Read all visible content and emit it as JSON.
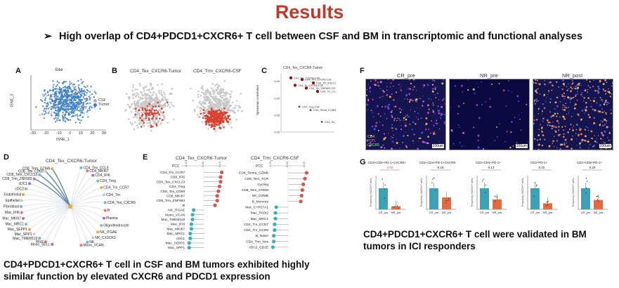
{
  "header": {
    "title": "Results",
    "bullet_arrow": "➢",
    "bullet_text": "High overlap of CD4+PDCD1+CXCR6+ T cell between CSF and BM in transcriptomic and functional analyses"
  },
  "panelA": {
    "label": "A",
    "title": "Site",
    "xlabel": "tSNE_1",
    "ylabel": "tSNE_2",
    "xticks": [
      "-30",
      "-20",
      "-10",
      "0",
      "10",
      "20",
      "30"
    ],
    "legend": [
      "CSF",
      "Tumor"
    ],
    "colors": {
      "CSF": "#b0b0b0",
      "Tumor": "#3a7fc4"
    }
  },
  "panelB": {
    "label": "B",
    "titles": [
      "CD4_Tex_CXCR6-Tumor",
      "CD4_Trm_CXCR6-CSF"
    ],
    "colors": {
      "background": "#c8c8c8",
      "highlight": "#d94030"
    }
  },
  "panelC": {
    "label": "C",
    "title": "CD4_Tex_CXCR6-Tumor",
    "ylabel": "Spearman correlation",
    "yticks": [
      "0.65",
      "0.60",
      "0.55",
      "0.50"
    ],
    "chart_data": {
      "type": "scatter",
      "ylabel": "Spearman correlation",
      "points": [
        {
          "label": "CD4_Tex_CXCR6-CSF",
          "y": 0.66
        },
        {
          "label": "CD4_Trm_CXCR6-CSF",
          "y": 0.655
        },
        {
          "label": "CD4_Tfh_IFI6-CSF",
          "y": 0.645
        },
        {
          "label": "CD4_Th_CXCR6-CSF",
          "y": 0.638
        },
        {
          "label": "CD4_Tfh_ZNF683-CSF",
          "y": 0.63
        },
        {
          "label": "CD4_Tm_CCR7-CSF",
          "y": 0.62
        },
        {
          "label": "CD4_Treg-CSF",
          "y": 0.575
        },
        {
          "label": "CD4_Temra_KLRB1-CSF",
          "y": 0.565
        },
        {
          "label": "CD4_Tm_FOS-CSF",
          "y": 0.53
        }
      ]
    }
  },
  "panelD": {
    "label": "D",
    "title": "CD4_Tex_CXCR6-Tumor",
    "left_nodes": [
      "CD8_Tem_GZMA",
      "CD8_Tex_CD69",
      "CD8_Tem_CXCL13",
      "CD8_Trm_ZNF683",
      "cDC1",
      "cDC2",
      "Endothelial",
      "Epithelial",
      "Fibroblast",
      "Mac_IFI6",
      "Mac_MKI67",
      "Mac_MRC1",
      "Mac_SEPP1",
      "Mac_SPP1",
      "Mac_TMEM119",
      "Mast",
      "Mono_SELL"
    ],
    "right_nodes": [
      "CD4_Tex_CCL5",
      "CD4_MKI67",
      "CD4_IFI6",
      "CD4_Treg",
      "CD4_Tm_CCR7",
      "CD4_Tm",
      "CD4_Tex_CXCR6",
      "B",
      "Plasma",
      "Oligodendrocyte",
      "NK_ITGAE",
      "NK_CX3CR1",
      "NK",
      "Mono_VCAN"
    ]
  },
  "panelE": {
    "label": "E",
    "left": {
      "title": "CD4_Tex_CXCR6-Tumor",
      "axis": "PCC",
      "ticks": [
        "-0.15",
        "0.00",
        "0.15"
      ],
      "chart_data": {
        "type": "lollipop",
        "xlabel": "PCC",
        "categories": [
          "CD4_Tm_CCR7",
          "CD8_IFI6",
          "CD8_Tex_CXCL13",
          "CD4_Treg",
          "CD8_Tex_CD69",
          "CD8_MKI67",
          "CD8_Trm_ZNF683",
          "B",
          "NK_ITGAE",
          "Mono_VCAN",
          "Mac_TMEM119",
          "Mac_IFI6",
          "Mac_MKI67",
          "Mac_MRC1",
          "cDC1",
          "Mac_SEPP1",
          "Mac_SPP1"
        ],
        "values": [
          0.16,
          0.15,
          0.15,
          0.14,
          0.13,
          0.12,
          0.12,
          0.1,
          -0.09,
          -0.1,
          -0.1,
          -0.11,
          -0.11,
          -0.12,
          -0.12,
          -0.13,
          -0.13
        ]
      }
    },
    "right": {
      "title": "CD4_Trm_CXCR6-CSF",
      "axis": "PCC",
      "ticks": [
        "-0.20",
        "0.00",
        "0.20"
      ],
      "chart_data": {
        "type": "lollipop",
        "xlabel": "PCC",
        "categories": [
          "CD8_Temra_GZMB",
          "CD8_Tem_TCR",
          "Cycling",
          "CD8_Tem_CREM",
          "NK_GZMB",
          "B_Memory",
          "Mac_CYP27A1",
          "Mac_PADI2",
          "Mac_MRC1",
          "CD4_Tm_CCR7",
          "CD4_Tm_CCR6",
          "B_Naive",
          "CD4_Trm_Nos",
          "cDC2_CD1E"
        ],
        "values": [
          0.22,
          0.2,
          0.18,
          0.17,
          0.16,
          0.15,
          -0.14,
          -0.15,
          -0.15,
          -0.16,
          -0.16,
          -0.17,
          -0.17,
          -0.18
        ]
      }
    }
  },
  "panelF": {
    "label": "F",
    "titles": [
      "CR_pre",
      "NR_pre",
      "NR_post"
    ],
    "scalebars": [
      "200um",
      "200um",
      "200um"
    ],
    "legend": [
      "CD4",
      "PD-1",
      "CXCR6"
    ]
  },
  "panelG": {
    "label": "G",
    "chart_data": [
      {
        "type": "bar",
        "title": "CD3+CD4+PD-1+CXCR6+",
        "pvalue": "0.02",
        "categories": [
          "CR_pre",
          "NR_pre"
        ],
        "values": [
          0.028,
          0.004
        ]
      },
      {
        "type": "bar",
        "title": "CD3+CD4+PD-1+CXCR6-",
        "pvalue": "0.18",
        "categories": [
          "CR_pre",
          "NR_pre"
        ],
        "values": [
          0.032,
          0.018
        ]
      },
      {
        "type": "bar",
        "title": "CD3+CD4+PD-1+",
        "pvalue": "0.13",
        "categories": [
          "CR_pre",
          "NR_pre"
        ],
        "values": [
          0.034,
          0.016
        ]
      },
      {
        "type": "bar",
        "title": "CD3+PD-1+",
        "pvalue": "0.15",
        "categories": [
          "CR_pre",
          "NR_pre"
        ],
        "values": [
          0.07,
          0.02
        ]
      },
      {
        "type": "bar",
        "title": "CD3+CD8+PD-1+",
        "pvalue": "0.29",
        "categories": [
          "CR_pre",
          "NR_pre"
        ],
        "values": [
          0.045,
          0.02
        ]
      }
    ],
    "ylabel": "Frequency (%CD3+T cells)",
    "colors": {
      "CR_pre": "#3aa3b8",
      "NR_pre": "#e86a3c"
    }
  },
  "captions": {
    "left": "CD4+PDCD1+CXCR6+ T cell  in CSF and BM tumors  exhibited highly similar function by elevated CXCR6 and PDCD1 expression",
    "right": "CD4+PDCD1+CXCR6+ T cell  were validated in BM tumors in ICI responders"
  }
}
